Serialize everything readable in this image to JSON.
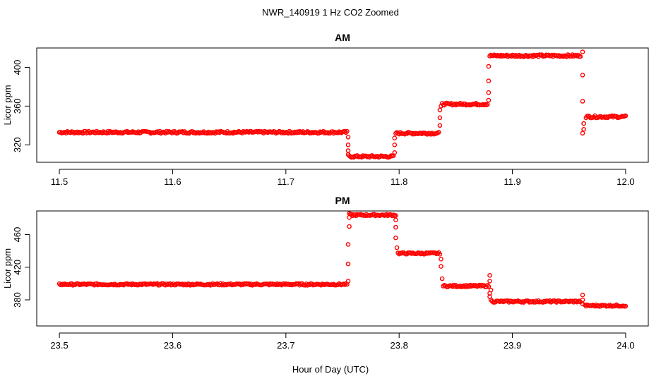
{
  "figure": {
    "title": "NWR_140919  1 Hz CO2 Zoomed",
    "xlabel": "Hour of Day (UTC)"
  },
  "colors": {
    "points": "#ff0000",
    "axis": "#000000",
    "background": "#ffffff"
  },
  "chart_data": [
    {
      "type": "scatter",
      "title": "AM",
      "ylabel": "Licor ppm",
      "xlim": [
        11.5,
        12.0
      ],
      "ylim": [
        302,
        420
      ],
      "xticks": [
        11.5,
        11.6,
        11.7,
        11.8,
        11.9,
        12.0
      ],
      "xtick_labels": [
        "11.5",
        "11.6",
        "11.7",
        "11.8",
        "11.9",
        "12.0"
      ],
      "yticks": [
        320,
        360,
        400
      ],
      "ytick_labels": [
        "320",
        "360",
        "400"
      ],
      "grid": false,
      "legend": "none",
      "series_levels": [
        {
          "x_start": 11.5,
          "x_end": 11.754,
          "y": 333
        },
        {
          "x_start": 11.756,
          "x_end": 11.795,
          "y": 308
        },
        {
          "x_start": 11.797,
          "x_end": 11.835,
          "y": 332
        },
        {
          "x_start": 11.838,
          "x_end": 11.878,
          "y": 362
        },
        {
          "x_start": 11.88,
          "x_end": 11.96,
          "y": 412
        },
        {
          "x_start": 11.965,
          "x_end": 12.0,
          "y": 349
        }
      ],
      "transition_points": {
        "x": [
          11.755,
          11.755,
          11.755,
          11.755,
          11.796,
          11.796,
          11.796,
          11.836,
          11.836,
          11.836,
          11.837,
          11.879,
          11.879,
          11.879,
          11.879,
          11.962,
          11.962,
          11.962,
          11.963,
          11.963,
          11.962
        ],
        "y": [
          328,
          320,
          314,
          310,
          312,
          320,
          327,
          340,
          348,
          356,
          360,
          366,
          374,
          386,
          401,
          416,
          392,
          365,
          342,
          336,
          332
        ]
      }
    },
    {
      "type": "scatter",
      "title": "PM",
      "ylabel": "Licor ppm",
      "xlim": [
        23.5,
        24.0
      ],
      "ylim": [
        348,
        489
      ],
      "xticks": [
        23.5,
        23.6,
        23.7,
        23.8,
        23.9,
        24.0
      ],
      "xtick_labels": [
        "23.5",
        "23.6",
        "23.7",
        "23.8",
        "23.9",
        "24.0"
      ],
      "yticks": [
        380,
        420,
        460
      ],
      "ytick_labels": [
        "380",
        "420",
        "460"
      ],
      "grid": false,
      "legend": "none",
      "series_levels": [
        {
          "x_start": 23.5,
          "x_end": 23.754,
          "y": 399
        },
        {
          "x_start": 23.757,
          "x_end": 23.797,
          "y": 484
        },
        {
          "x_start": 23.799,
          "x_end": 23.836,
          "y": 437
        },
        {
          "x_start": 23.839,
          "x_end": 23.879,
          "y": 397
        },
        {
          "x_start": 23.882,
          "x_end": 23.96,
          "y": 378
        },
        {
          "x_start": 23.964,
          "x_end": 24.0,
          "y": 373
        }
      ],
      "transition_points": {
        "x": [
          23.755,
          23.755,
          23.755,
          23.756,
          23.756,
          23.756,
          23.797,
          23.797,
          23.797,
          23.798,
          23.837,
          23.837,
          23.838,
          23.88,
          23.88,
          23.881,
          23.88,
          23.88,
          23.881,
          23.962,
          23.962,
          23.962
        ],
        "y": [
          403,
          424,
          448,
          470,
          481,
          486,
          478,
          469,
          456,
          444,
          430,
          421,
          406,
          410,
          403,
          392,
          388,
          384,
          380,
          386,
          380,
          375
        ]
      }
    }
  ]
}
